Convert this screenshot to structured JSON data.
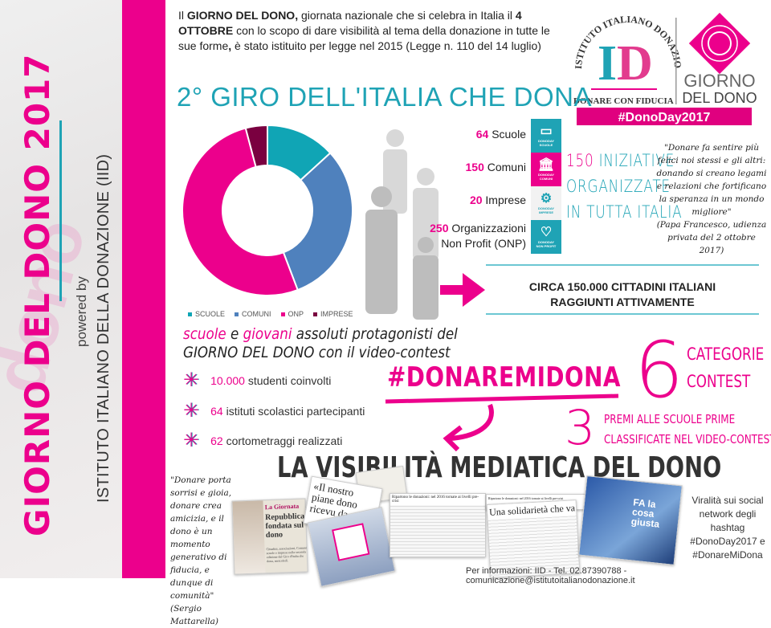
{
  "sidebar": {
    "title": "GIORNO DEL DONO 2017",
    "powered_by": "powered by",
    "institute": "ISTITUTO ITALIANO DELLA DONAZIONE (IID)"
  },
  "intro": {
    "p1_bold": "GIORNO DEL DONO,",
    "p1_pre": "Il ",
    "p1_rest": " giornata nazionale che si celebra in Italia il ",
    "date_bold": "4 OTTOBRE",
    "p2": " con lo scopo di dare visibilità al tema della donazione in tutte le sue forme",
    "comma": ",",
    "p3": " è stato istituito per legge nel 2015 (Legge n. 110 del 14 luglio)"
  },
  "logo": {
    "arc": "ISTITUTO ITALIANO DONAZIONE",
    "mark": "ID",
    "tagline": "DONARE CON FIDUCIA",
    "giorno": "GIORNO",
    "del_dono": "DEL DONO",
    "hashtag": "#DonoDay2017"
  },
  "giro_title": "2° GIRO DELL'ITALIA CHE DONA",
  "stats": [
    {
      "num": "64",
      "label": "Scuole"
    },
    {
      "num": "150",
      "label": "Comuni"
    },
    {
      "num": "20",
      "label": "Imprese"
    },
    {
      "num": "250",
      "label": "Organizzazioni",
      "label2": "Non Profit (ONP)"
    }
  ],
  "tiles": [
    {
      "brand": "DONODAY",
      "label": "SCUOLE",
      "icon": "book-icon",
      "color": "#1fa3b5"
    },
    {
      "brand": "DONODAY",
      "label": "COMUNI",
      "icon": "building-icon",
      "color": "#ec008c"
    },
    {
      "brand": "DONODAY",
      "label": "IMPRESE",
      "icon": "gears-icon",
      "color": "#f2f2f2"
    },
    {
      "brand": "DONODAY",
      "label": "NON PROFIT",
      "icon": "heart-icon",
      "color": "#1fa3b5"
    }
  ],
  "iniziative": {
    "num": "150",
    "l1": " INIZIATIVE",
    "l2": "ORGANIZZATE",
    "l3": "IN TUTTA ITALIA"
  },
  "papa_quote": "\"Donare fa sentire più felici noi stessi e gli altri: donando si creano legami e relazioni che fortificano la speranza in un mondo migliore\"",
  "papa_source": "(Papa Francesco, udienza privata del 2 ottobre 2017)",
  "circa": {
    "l1": "CIRCA 150.000 CITTADINI ITALIANI",
    "l2": "RAGGIUNTI ATTIVAMENTE"
  },
  "chart_data": {
    "type": "pie",
    "donut": true,
    "categories": [
      "SCUOLE",
      "COMUNI",
      "ONP",
      "IMPRESE"
    ],
    "values": [
      64,
      150,
      250,
      20
    ],
    "colors": [
      "#10a5b5",
      "#4f81bd",
      "#ec008c",
      "#7a0040"
    ],
    "legend": "bottom"
  },
  "proto": {
    "w1": "scuole",
    "w2": " e ",
    "w3": "giovani",
    "w4": " assoluti protagonisti del",
    "l2a": "GIORNO DEL DONO",
    "l2b": " con il video-contest"
  },
  "bullets": [
    {
      "num": "10.000",
      "text": " studenti coinvolti"
    },
    {
      "num": "64",
      "text": " istituti scolastici partecipanti"
    },
    {
      "num": "62",
      "text": " cortometraggi realizzati"
    }
  ],
  "contest": {
    "hashtag": "#DONAREMIDONA",
    "six": "6",
    "cat1": "CATEGORIE",
    "cat2": "CONTEST",
    "three": "3",
    "premi1": "PREMI ALLE SCUOLE PRIME",
    "premi2": "CLASSIFICATE NEL VIDEO-CONTEST"
  },
  "media": {
    "title": "LA VISIBILITÀ MEDIATICA DEL DONO",
    "mattarella_quote": "\"Donare porta sorrisi e gioia, donare crea amicizia, e il dono è un momento generativo di fiducia, e dunque di comunità\"",
    "mattarella_source": "(Sergio Mattarella)",
    "clip1_head": "La Giornata",
    "clip1_title": "Repubblica fondata sul dono",
    "clip1_body": "Cittadini, associazioni, Comuni, scuole e imprese nella seconda edizione del Giro d'Italia che dona, mercoledì.",
    "clip2_title": "«Il nostro piane dono ricevu da co",
    "clip3_head": "Ripartono le donazioni: nel 2016 tornate ai livelli pre-crisi",
    "clip3_title": "Una solidarietà che va oltre le emergenze",
    "tv_text": "FA la cosa giusta",
    "viral": "Viralità sui social network degli hashtag #DonoDay2017 e #DonareMiDona"
  },
  "footer": "Per informazioni: IID - Tel. 02.87390788 - comunicazione@istitutoitalianodonazione.it"
}
